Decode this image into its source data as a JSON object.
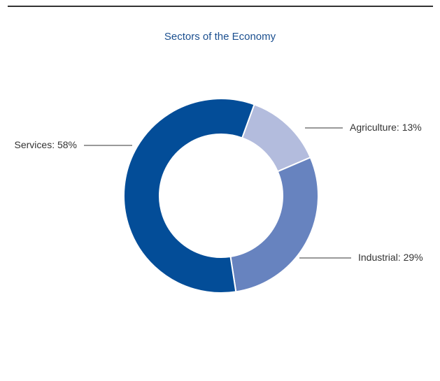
{
  "chart_data": {
    "type": "pie",
    "title": "Sectors of the Economy",
    "categories": [
      "Agriculture",
      "Industrial",
      "Services"
    ],
    "values": [
      13,
      29,
      58
    ],
    "labels": [
      "Agriculture: 13%",
      "Industrial: 29%",
      "Services: 58%"
    ],
    "colors": [
      "#b3bcdd",
      "#6783bf",
      "#034d98"
    ],
    "slice_border_color": "#ffffff",
    "leader_line_color": "#333333",
    "donut": true,
    "legend": "none",
    "grid": false
  }
}
